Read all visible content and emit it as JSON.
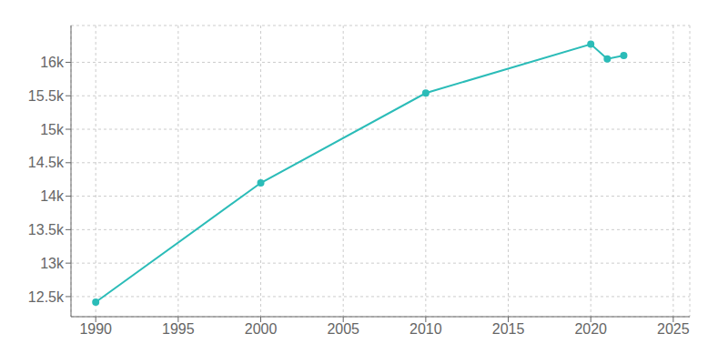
{
  "chart_data": {
    "type": "line",
    "x": [
      1990,
      2000,
      2010,
      2020,
      2021,
      2022
    ],
    "values": [
      12417,
      14198,
      15540,
      16270,
      16050,
      16100
    ],
    "color": "#2bbcb8",
    "marker": "o",
    "xlim": [
      1988.5,
      2026
    ],
    "ylim": [
      12200,
      16550
    ],
    "xticks": [
      1990,
      1995,
      2000,
      2005,
      2010,
      2015,
      2020,
      2025
    ],
    "yticks": [
      {
        "value": 12500,
        "label": "12.5k"
      },
      {
        "value": 13000,
        "label": "13k"
      },
      {
        "value": 13500,
        "label": "13.5k"
      },
      {
        "value": 14000,
        "label": "14k"
      },
      {
        "value": 14500,
        "label": "14.5k"
      },
      {
        "value": 15000,
        "label": "15k"
      },
      {
        "value": 15500,
        "label": "15.5k"
      },
      {
        "value": 16000,
        "label": "16k"
      }
    ],
    "grid": true
  }
}
